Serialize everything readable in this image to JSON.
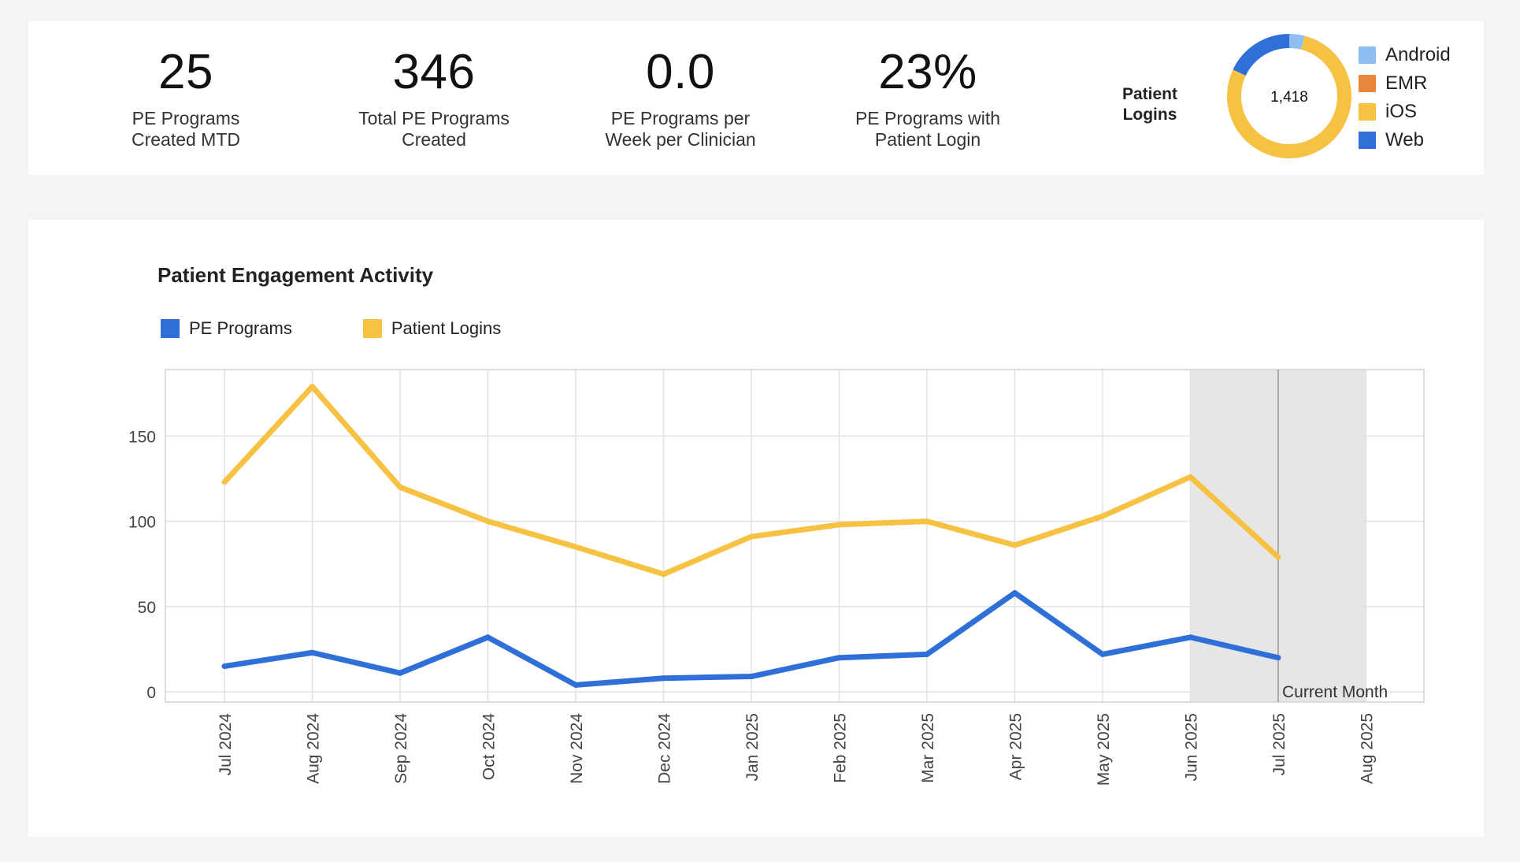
{
  "kpis": [
    {
      "value": "25",
      "label_line1": "PE Programs",
      "label_line2": "Created MTD"
    },
    {
      "value": "346",
      "label_line1": "Total PE Programs",
      "label_line2": "Created"
    },
    {
      "value": "0.0",
      "label_line1": "PE Programs per",
      "label_line2": "Week per Clinician"
    },
    {
      "value": "23%",
      "label_line1": "PE Programs with",
      "label_line2": "Patient Login"
    }
  ],
  "donut": {
    "title_line1": "Patient",
    "title_line2": "Logins",
    "center_label": "1,418",
    "slices": [
      {
        "name": "Android",
        "fraction": 0.04,
        "color": "#8fbef2"
      },
      {
        "name": "EMR",
        "fraction": 0.0,
        "color": "#e8873a"
      },
      {
        "name": "iOS",
        "fraction": 0.78,
        "color": "#f7c244"
      },
      {
        "name": "Web",
        "fraction": 0.18,
        "color": "#2f6fd8"
      }
    ]
  },
  "chart_data": {
    "type": "line",
    "title": "Patient Engagement Activity",
    "x": [
      "Jul 2024",
      "Aug 2024",
      "Sep 2024",
      "Oct 2024",
      "Nov 2024",
      "Dec 2024",
      "Jan 2025",
      "Feb 2025",
      "Mar 2025",
      "Apr 2025",
      "May 2025",
      "Jun 2025",
      "Jul 2025",
      "Aug 2025"
    ],
    "series": [
      {
        "name": "PE Programs",
        "color": "#2f6fd8",
        "values": [
          15,
          23,
          11,
          32,
          4,
          8,
          9,
          20,
          22,
          58,
          22,
          32,
          20,
          null
        ]
      },
      {
        "name": "Patient Logins",
        "color": "#f7c244",
        "values": [
          123,
          179,
          120,
          100,
          85,
          69,
          91,
          98,
          100,
          86,
          103,
          126,
          79,
          null
        ]
      }
    ],
    "yticks": [
      0,
      50,
      100,
      150
    ],
    "ylim": [
      -6,
      189
    ],
    "highlight": {
      "label": "Current Month",
      "start_category": "Jun 2025",
      "end_category": "Aug 2025"
    },
    "grid": true,
    "legend_position": "top-left"
  }
}
